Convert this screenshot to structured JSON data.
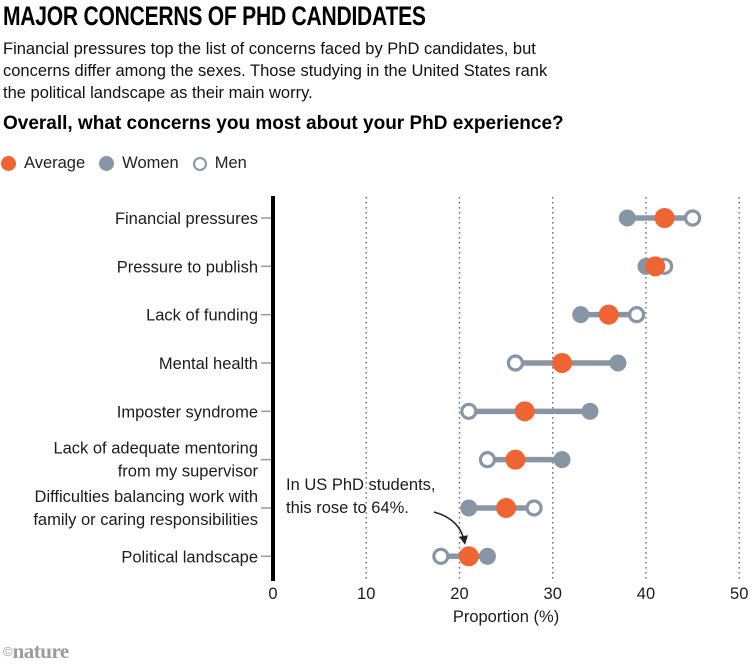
{
  "header": {
    "title": "MAJOR CONCERNS OF PHD CANDIDATES",
    "subtitle_lines": [
      "Financial pressures top the list of concerns faced by PhD candidates, but",
      "concerns differ among the sexes. Those studying in the United States rank",
      "the political landscape as their main worry."
    ],
    "question": "Overall, what concerns you most about your PhD experience?"
  },
  "legend": [
    {
      "label": "Average",
      "type": "average"
    },
    {
      "label": "Women",
      "type": "women"
    },
    {
      "label": "Men",
      "type": "men"
    }
  ],
  "colors": {
    "average": "#EE6432",
    "women": "#8795A4",
    "men_outline": "#8795A4",
    "text": "#1c1c1c",
    "axis": "#000000",
    "grid": "#6f6f6f",
    "logo": "#9b9b9b"
  },
  "chart_data": {
    "type": "dumbbell-dot",
    "title": "Overall, what concerns you most about your PhD experience?",
    "categories": [
      "Financial pressures",
      "Pressure to publish",
      "Lack of funding",
      "Mental health",
      "Imposter syndrome",
      "Lack of adequate mentoring\nfrom my supervisor",
      "Difficulties balancing work with\nfamily or caring responsibilities",
      "Political landscape"
    ],
    "series": [
      {
        "name": "Average",
        "style": "filled-orange",
        "values": [
          42,
          41,
          36,
          31,
          27,
          26,
          25,
          21
        ]
      },
      {
        "name": "Women",
        "style": "filled-gray",
        "values": [
          38,
          40,
          33,
          37,
          34,
          31,
          21,
          23
        ]
      },
      {
        "name": "Men",
        "style": "open",
        "values": [
          45,
          42,
          39,
          26,
          21,
          23,
          28,
          18
        ]
      }
    ],
    "xlabel": "Proportion (%)",
    "xticks": [
      0,
      10,
      20,
      30,
      40,
      50
    ],
    "xlim": [
      0,
      50
    ],
    "grid": "vertical-dotted",
    "legend_position": "top-left",
    "annotation": {
      "lines": [
        "In US PhD students,",
        "this rose to 64%."
      ],
      "target_category_index": 7,
      "target_series": "Average",
      "target_value": 21
    }
  },
  "footer": {
    "copyright": "©",
    "brand": "nature"
  }
}
